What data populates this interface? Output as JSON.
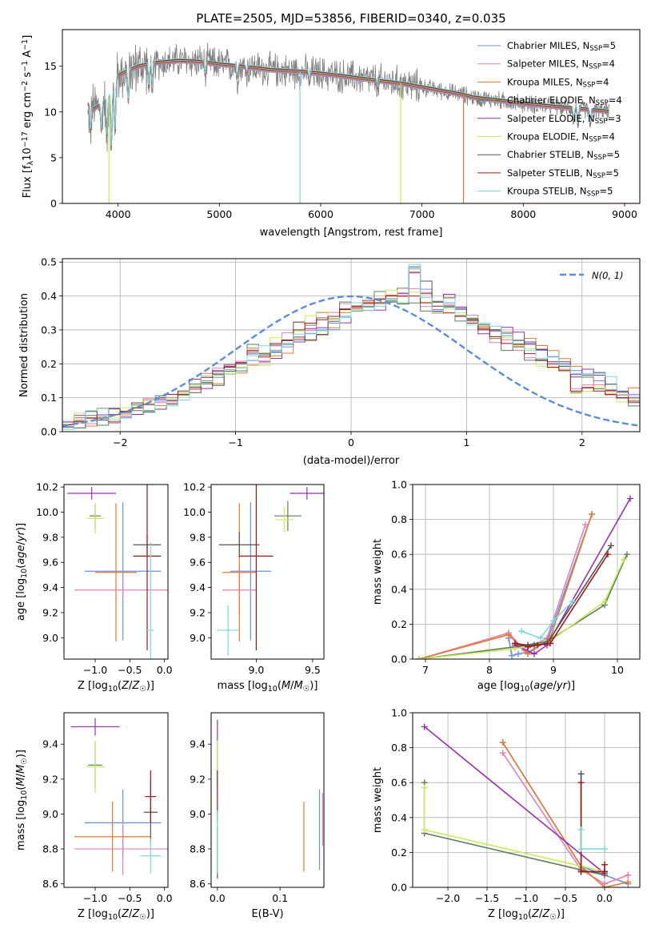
{
  "colors": {
    "c0": "#6b8fe3",
    "c1": "#e57fb5",
    "c2": "#e07a35",
    "c3": "#5e7f5e",
    "c4": "#9a30b0",
    "c5": "#c8ea5a",
    "c6": "#555555",
    "c7": "#a01818",
    "c8": "#7dd8dd",
    "data_line": "#808080",
    "gauss": "#5b8ed8"
  },
  "chart_data": [
    {
      "type": "line",
      "title": "PLATE=2505, MJD=53856, FIBERID=0340, z=0.035",
      "xlabel": "wavelength [Angstrom, rest frame]",
      "ylabel": "Flux [f$_\\lambda$10$^{-17}$ erg cm$^{-2}$ s$^{-1}$ A$^{-1}$]",
      "xlim": [
        3450,
        9150
      ],
      "ylim": [
        0,
        19
      ],
      "xticks": [
        "4000",
        "5000",
        "6000",
        "7000",
        "8000",
        "9000"
      ],
      "yticks": [
        "0",
        "5",
        "10",
        "15"
      ],
      "legend": "top-right",
      "legend_entries": [
        {
          "model": "Chabrier MILES, N",
          "sub": "SSP",
          "eq": "=5"
        },
        {
          "model": "Salpeter MILES, N",
          "sub": "SSP",
          "eq": "=4"
        },
        {
          "model": "Kroupa MILES, N",
          "sub": "SSP",
          "eq": "=4"
        },
        {
          "model": "Chabrier ELODIE, N",
          "sub": "SSP",
          "eq": "=4"
        },
        {
          "model": "Salpeter ELODIE, N",
          "sub": "SSP",
          "eq": "=3"
        },
        {
          "model": "Kroupa ELODIE, N",
          "sub": "SSP",
          "eq": "=4"
        },
        {
          "model": "Chabrier STELIB, N",
          "sub": "SSP",
          "eq": "=5"
        },
        {
          "model": "Salpeter STELIB, N",
          "sub": "SSP",
          "eq": "=5"
        },
        {
          "model": "Kroupa STELIB, N",
          "sub": "SSP",
          "eq": "=5"
        }
      ],
      "continuum": {
        "x": [
          3700,
          3800,
          3900,
          3950,
          4000,
          4100,
          4200,
          4400,
          4600,
          4800,
          5000,
          5200,
          5500,
          5800,
          6000,
          6300,
          6500,
          6800,
          7000,
          7200,
          7400,
          7500,
          7800,
          8000,
          8200,
          8400,
          8600,
          8800,
          8850
        ],
        "y": [
          10.0,
          10.6,
          11.4,
          12.6,
          14.0,
          14.5,
          15.0,
          15.4,
          15.6,
          15.5,
          15.2,
          15.0,
          14.6,
          14.4,
          14.2,
          13.8,
          13.5,
          13.1,
          12.7,
          12.3,
          11.9,
          11.6,
          11.2,
          10.9,
          10.7,
          10.5,
          10.3,
          10.1,
          10.0
        ]
      },
      "absorption_lines": [
        {
          "x": 3727,
          "depth": 2.5
        },
        {
          "x": 3835,
          "depth": 3.0
        },
        {
          "x": 3889,
          "depth": 4.5
        },
        {
          "x": 3934,
          "depth": 6.5
        },
        {
          "x": 3969,
          "depth": 6.0
        },
        {
          "x": 4102,
          "depth": 3.5
        },
        {
          "x": 4304,
          "depth": 3.0
        },
        {
          "x": 4340,
          "depth": 3.0
        },
        {
          "x": 4861,
          "depth": 1.5
        },
        {
          "x": 5175,
          "depth": 1.5
        },
        {
          "x": 5270,
          "depth": 0.8
        },
        {
          "x": 5890,
          "depth": 1.2
        },
        {
          "x": 6563,
          "depth": 1.0
        },
        {
          "x": 8498,
          "depth": 1.5
        },
        {
          "x": 8542,
          "depth": 2.0
        },
        {
          "x": 8662,
          "depth": 1.8
        }
      ],
      "artifacts": [
        {
          "x": 3910,
          "to": 0,
          "color": "c5"
        },
        {
          "x": 5795,
          "to": 0,
          "color": "c8"
        },
        {
          "x": 6790,
          "to": 0,
          "color": "c5"
        },
        {
          "x": 7410,
          "to": 0,
          "color": "c2",
          "tail": true
        }
      ],
      "data_noise_amplitude": 1.5
    },
    {
      "type": "histogram",
      "xlabel": "(data-model)/error",
      "ylabel": "Normed distribution",
      "xlim": [
        -2.5,
        2.5
      ],
      "ylim": [
        0,
        0.51
      ],
      "xticks": [
        "−2",
        "−1",
        "0",
        "1",
        "2"
      ],
      "yticks": [
        "0.0",
        "0.1",
        "0.2",
        "0.3",
        "0.4",
        "0.5"
      ],
      "grid": true,
      "legend": "top-right",
      "legend_label": "N(0, 1)",
      "bin_width": 0.1,
      "bin_start": -2.5,
      "series": [
        {
          "color": "c0",
          "values": [
            0.03,
            0.03,
            0.04,
            0.05,
            0.05,
            0.06,
            0.07,
            0.08,
            0.09,
            0.1,
            0.11,
            0.13,
            0.15,
            0.16,
            0.17,
            0.19,
            0.21,
            0.23,
            0.24,
            0.25,
            0.27,
            0.29,
            0.3,
            0.32,
            0.34,
            0.36,
            0.37,
            0.38,
            0.39,
            0.4,
            0.48,
            0.42,
            0.36,
            0.38,
            0.36,
            0.33,
            0.31,
            0.3,
            0.29,
            0.27,
            0.26,
            0.24,
            0.22,
            0.2,
            0.18,
            0.17,
            0.15,
            0.14,
            0.12,
            0.11,
            0.1
          ]
        },
        {
          "color": "c7",
          "values": [
            0.02,
            0.03,
            0.04,
            0.04,
            0.05,
            0.06,
            0.07,
            0.08,
            0.1,
            0.11,
            0.12,
            0.13,
            0.16,
            0.17,
            0.19,
            0.2,
            0.24,
            0.22,
            0.26,
            0.27,
            0.3,
            0.32,
            0.33,
            0.34,
            0.36,
            0.37,
            0.38,
            0.39,
            0.4,
            0.4,
            0.4,
            0.38,
            0.37,
            0.35,
            0.34,
            0.32,
            0.3,
            0.28,
            0.26,
            0.25,
            0.23,
            0.21,
            0.19,
            0.18,
            0.12,
            0.13,
            0.12,
            0.11,
            0.1,
            0.09,
            0.08
          ]
        }
      ],
      "gaussian": {
        "mu": 0,
        "sigma": 1
      }
    },
    {
      "type": "errorbar",
      "xlabel": "Z [log10(Z/Z☉)]",
      "ylabel": "age  [log10(age/yr)]",
      "xlim": [
        -1.45,
        0.05
      ],
      "ylim": [
        8.83,
        10.22
      ],
      "xticks": [
        "−1.0",
        "−0.5",
        "0.0"
      ],
      "yticks": [
        "9.0",
        "9.2",
        "9.4",
        "9.6",
        "9.8",
        "10.0",
        "10.2"
      ],
      "points": [
        {
          "c": "c0",
          "x": -0.6,
          "xe": 0.55,
          "y": 9.53,
          "ye": 0.55
        },
        {
          "c": "c1",
          "x": -0.6,
          "xe": 0.7,
          "y": 9.38,
          "ye": 0.07
        },
        {
          "c": "c2",
          "x": -0.7,
          "xe": 0.3,
          "y": 9.52,
          "ye": 0.55
        },
        {
          "c": "c3",
          "x": -1.0,
          "xe": 0.08,
          "y": 9.97,
          "ye": 0.1
        },
        {
          "c": "c4",
          "x": -1.05,
          "xe": 0.35,
          "y": 10.15,
          "ye": 0.05
        },
        {
          "c": "c5",
          "x": -1.0,
          "xe": 0.12,
          "y": 9.95,
          "ye": 0.12
        },
        {
          "c": "c6",
          "x": -0.25,
          "xe": 0.2,
          "y": 9.74,
          "ye": 0.08
        },
        {
          "c": "c7",
          "x": -0.25,
          "xe": 0.2,
          "y": 9.65,
          "ye": 0.75
        },
        {
          "c": "c8",
          "x": -0.2,
          "xe": 0.05,
          "y": 9.06,
          "ye": 0.7
        }
      ]
    },
    {
      "type": "errorbar",
      "xlabel": "mass [log10(M/M☉)]",
      "ylabel": "",
      "xlim": [
        8.6,
        9.6
      ],
      "ylim": [
        8.83,
        10.22
      ],
      "xticks": [
        "9.0",
        "9.5"
      ],
      "yticks": [
        "9.0",
        "9.2",
        "9.4",
        "9.6",
        "9.8",
        "10.0",
        "10.2"
      ],
      "points": [
        {
          "c": "c0",
          "x": 8.95,
          "xe": 0.18,
          "y": 9.53,
          "ye": 0.55
        },
        {
          "c": "c1",
          "x": 8.85,
          "xe": 0.15,
          "y": 9.38,
          "ye": 0.2
        },
        {
          "c": "c2",
          "x": 8.85,
          "xe": 0.15,
          "y": 9.52,
          "ye": 0.55
        },
        {
          "c": "c3",
          "x": 9.28,
          "xe": 0.12,
          "y": 9.97,
          "ye": 0.12
        },
        {
          "c": "c4",
          "x": 9.45,
          "xe": 0.15,
          "y": 10.15,
          "ye": 0.05
        },
        {
          "c": "c5",
          "x": 9.25,
          "xe": 0.08,
          "y": 9.94,
          "ye": 0.1
        },
        {
          "c": "c6",
          "x": 8.85,
          "xe": 0.18,
          "y": 9.74,
          "ye": 0.1
        },
        {
          "c": "c7",
          "x": 9.0,
          "xe": 0.15,
          "y": 9.65,
          "ye": 0.75
        },
        {
          "c": "c8",
          "x": 8.75,
          "xe": 0.1,
          "y": 9.06,
          "ye": 0.2
        }
      ]
    },
    {
      "type": "line",
      "xlabel": "age  [log10(age/yr)]",
      "ylabel": "mass weight",
      "xlim": [
        6.8,
        10.35
      ],
      "ylim": [
        0,
        1.0
      ],
      "xticks": [
        "7",
        "8",
        "9",
        "10"
      ],
      "yticks": [
        "0.0",
        "0.2",
        "0.4",
        "0.6",
        "0.8",
        "1.0"
      ],
      "grid": true,
      "series": [
        {
          "c": "c0",
          "x": [
            8.3,
            8.35,
            8.45,
            8.6,
            8.9,
            9.6
          ],
          "y": [
            0.12,
            0.02,
            0.03,
            0.04,
            0.1,
            0.83
          ]
        },
        {
          "c": "c1",
          "x": [
            6.9,
            8.3,
            8.55,
            8.9,
            9.5
          ],
          "y": [
            0.0,
            0.15,
            0.05,
            0.12,
            0.77
          ]
        },
        {
          "c": "c2",
          "x": [
            6.9,
            8.3,
            8.6,
            8.95,
            9.6
          ],
          "y": [
            0.0,
            0.14,
            0.03,
            0.12,
            0.83
          ]
        },
        {
          "c": "c3",
          "x": [
            6.9,
            8.4,
            8.9,
            9.8,
            10.15
          ],
          "y": [
            0.0,
            0.07,
            0.1,
            0.31,
            0.6
          ]
        },
        {
          "c": "c4",
          "x": [
            8.4,
            8.7,
            8.9,
            10.2
          ],
          "y": [
            0.08,
            0.03,
            0.08,
            0.92
          ]
        },
        {
          "c": "c5",
          "x": [
            6.9,
            8.4,
            8.9,
            9.8,
            10.1
          ],
          "y": [
            0.0,
            0.06,
            0.09,
            0.33,
            0.57
          ]
        },
        {
          "c": "c6",
          "x": [
            8.4,
            8.6,
            8.7,
            8.9,
            9.9
          ],
          "y": [
            0.09,
            0.08,
            0.08,
            0.09,
            0.65
          ]
        },
        {
          "c": "c7",
          "x": [
            8.4,
            8.6,
            8.75,
            8.95,
            9.85
          ],
          "y": [
            0.09,
            0.07,
            0.08,
            0.09,
            0.6
          ]
        },
        {
          "c": "c8",
          "x": [
            8.5,
            8.8,
            9.0,
            9.3
          ],
          "y": [
            0.16,
            0.12,
            0.22,
            0.33
          ]
        }
      ]
    },
    {
      "type": "errorbar",
      "xlabel": "Z [log10(Z/Z☉)]",
      "ylabel": "mass [log10(M/M☉)]",
      "xlim": [
        -1.45,
        0.05
      ],
      "ylim": [
        8.58,
        9.58
      ],
      "xticks": [
        "−1.0",
        "−0.5",
        "0.0"
      ],
      "yticks": [
        "8.6",
        "8.8",
        "9.0",
        "9.2",
        "9.4"
      ],
      "points": [
        {
          "c": "c0",
          "x": -0.6,
          "xe": 0.55,
          "y": 8.95,
          "ye": 0.19
        },
        {
          "c": "c1",
          "x": -0.6,
          "xe": 0.7,
          "y": 8.8,
          "ye": 0.15
        },
        {
          "c": "c2",
          "x": -0.75,
          "xe": 0.55,
          "y": 8.87,
          "ye": 0.2
        },
        {
          "c": "c3",
          "x": -1.0,
          "xe": 0.1,
          "y": 9.28,
          "ye": 0.13
        },
        {
          "c": "c4",
          "x": -1.0,
          "xe": 0.35,
          "y": 9.5,
          "ye": 0.05
        },
        {
          "c": "c5",
          "x": -1.0,
          "xe": 0.13,
          "y": 9.27,
          "ye": 0.15
        },
        {
          "c": "c6",
          "x": -0.2,
          "xe": 0.1,
          "y": 9.01,
          "ye": 0.18
        },
        {
          "c": "c7",
          "x": -0.2,
          "xe": 0.08,
          "y": 9.1,
          "ye": 0.15
        },
        {
          "c": "c8",
          "x": -0.2,
          "xe": 0.15,
          "y": 8.76,
          "ye": 0.1
        }
      ]
    },
    {
      "type": "errorbar",
      "xlabel": "E(B-V)",
      "ylabel": "",
      "xlim": [
        -0.01,
        0.17
      ],
      "ylim": [
        8.58,
        9.58
      ],
      "xticks": [
        "0.0",
        "0.1"
      ],
      "yticks": [
        "8.6",
        "8.8",
        "9.0",
        "9.2",
        "9.4"
      ],
      "points": [
        {
          "c": "c0",
          "x": 0.163,
          "xe": 0,
          "y": 8.91,
          "ye": 0.23
        },
        {
          "c": "c1",
          "x": 0.168,
          "xe": 0,
          "y": 8.97,
          "ye": 0.15
        },
        {
          "c": "c2",
          "x": 0.138,
          "xe": 0,
          "y": 8.87,
          "ye": 0.2
        },
        {
          "c": "c3",
          "x": 0.0,
          "xe": 0,
          "y": 9.28,
          "ye": 0.13
        },
        {
          "c": "c4",
          "x": 0.0,
          "xe": 0,
          "y": 9.48,
          "ye": 0.06
        },
        {
          "c": "c5",
          "x": 0.0,
          "xe": 0,
          "y": 9.27,
          "ye": 0.15
        },
        {
          "c": "c6",
          "x": 0.0,
          "xe": 0,
          "y": 8.78,
          "ye": 0.15
        },
        {
          "c": "c7",
          "x": 0.0,
          "xe": 0,
          "y": 9.1,
          "ye": 0.15
        },
        {
          "c": "c8",
          "x": 0.0,
          "xe": 0,
          "y": 8.84,
          "ye": 0.18
        }
      ]
    },
    {
      "type": "line",
      "xlabel": "Z [log10(Z/Z☉)]",
      "ylabel": "mass weight",
      "xlim": [
        -2.45,
        0.45
      ],
      "ylim": [
        0,
        1.0
      ],
      "xticks": [
        "−2.0",
        "−1.5",
        "−1.0",
        "−0.5",
        "0.0"
      ],
      "yticks": [
        "0.0",
        "0.2",
        "0.4",
        "0.6",
        "0.8",
        "1.0"
      ],
      "grid": true,
      "series": [
        {
          "c": "c0",
          "x": [
            -1.3,
            -0.3,
            0.3
          ],
          "y": [
            0.83,
            0.12,
            0.02
          ]
        },
        {
          "c": "c1",
          "x": [
            -1.3,
            -0.3,
            0.0,
            0.3
          ],
          "y": [
            0.77,
            0.1,
            0.02,
            0.07
          ]
        },
        {
          "c": "c2",
          "x": [
            -1.3,
            -0.3,
            0.0,
            0.3
          ],
          "y": [
            0.83,
            0.12,
            0.0,
            0.03
          ]
        },
        {
          "c": "c3",
          "x": [
            -2.3,
            -2.3,
            -0.3,
            0.0
          ],
          "y": [
            0.6,
            0.31,
            0.1,
            0.07
          ]
        },
        {
          "c": "c4",
          "x": [
            -2.3,
            0.0
          ],
          "y": [
            0.92,
            0.08
          ]
        },
        {
          "c": "c5",
          "x": [
            -2.3,
            -2.3,
            0.0
          ],
          "y": [
            0.57,
            0.33,
            0.09
          ]
        },
        {
          "c": "c6",
          "x": [
            -0.3,
            -0.3,
            0.0,
            0.0
          ],
          "y": [
            0.65,
            0.09,
            0.09,
            0.09
          ]
        },
        {
          "c": "c7",
          "x": [
            -0.3,
            -0.3,
            0.0,
            0.0
          ],
          "y": [
            0.6,
            0.09,
            0.09,
            0.13
          ]
        },
        {
          "c": "c8",
          "x": [
            -0.3,
            -0.3,
            0.0
          ],
          "y": [
            0.33,
            0.22,
            0.22
          ]
        }
      ]
    }
  ]
}
